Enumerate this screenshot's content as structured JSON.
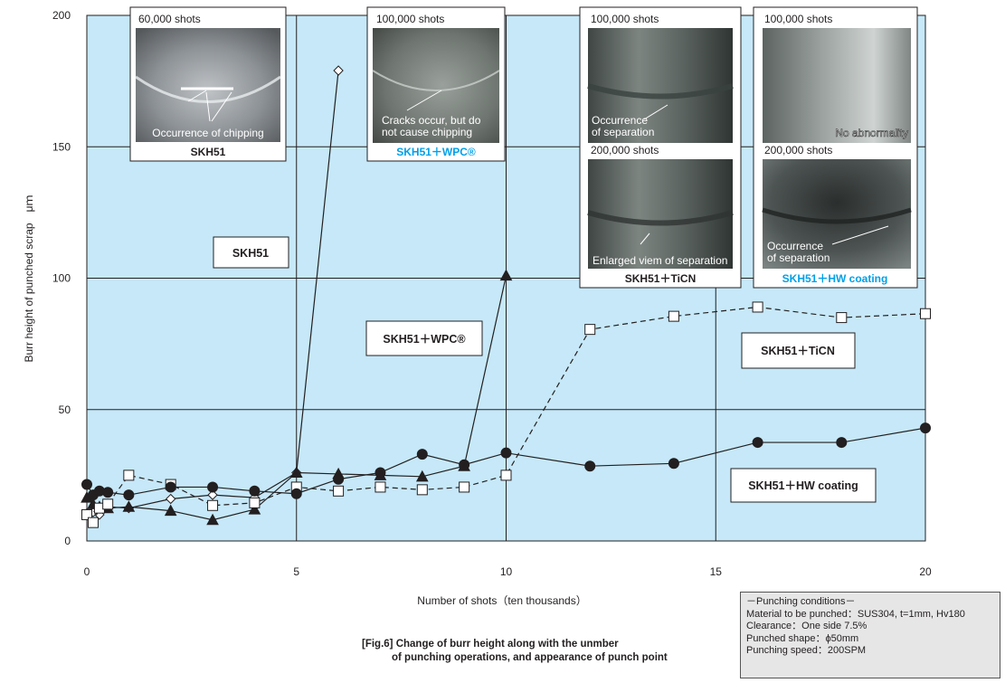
{
  "chart_data": {
    "type": "line",
    "title": "",
    "xlabel": "Number of shots（ten thousands）",
    "ylabel": "Burr height of punched scrap　μｍ",
    "xlim": [
      0,
      20
    ],
    "ylim": [
      0,
      200
    ],
    "x_ticks": [
      "0",
      "5",
      "10",
      "15",
      "20"
    ],
    "y_ticks": [
      "0",
      "50",
      "100",
      "150",
      "200"
    ],
    "grid": true,
    "background_color": "#c6e8f8",
    "series": [
      {
        "name": "SKH51",
        "marker": "diamond-open",
        "line": "solid",
        "points": [
          [
            0,
            10.5
          ],
          [
            0.15,
            11
          ],
          [
            0.3,
            10
          ],
          [
            0.5,
            13
          ],
          [
            1,
            12.5
          ],
          [
            2,
            16
          ],
          [
            3,
            17.5
          ],
          [
            4,
            16.5
          ],
          [
            5,
            26
          ],
          [
            6,
            179
          ]
        ]
      },
      {
        "name": "SKH51＋WPC®",
        "marker": "triangle-filled",
        "line": "solid",
        "points": [
          [
            0,
            16.5
          ],
          [
            0.15,
            14
          ],
          [
            0.3,
            13
          ],
          [
            0.5,
            12.5
          ],
          [
            1,
            13
          ],
          [
            2,
            11.5
          ],
          [
            3,
            8
          ],
          [
            4,
            12
          ],
          [
            5,
            26
          ],
          [
            6,
            25.5
          ],
          [
            7,
            25
          ],
          [
            8,
            24.5
          ],
          [
            9,
            28.5
          ],
          [
            10,
            101
          ]
        ]
      },
      {
        "name": "SKH51＋TiCN",
        "marker": "square-open",
        "line": "dashed",
        "points": [
          [
            0,
            10
          ],
          [
            0.15,
            7
          ],
          [
            0.3,
            12.5
          ],
          [
            0.5,
            14
          ],
          [
            1,
            25
          ],
          [
            2,
            21.5
          ],
          [
            3,
            13.5
          ],
          [
            4,
            14.5
          ],
          [
            5,
            20.5
          ],
          [
            6,
            19
          ],
          [
            7,
            20.5
          ],
          [
            8,
            19.5
          ],
          [
            9,
            20.5
          ],
          [
            10,
            25
          ],
          [
            12,
            80.5
          ],
          [
            14,
            85.5
          ],
          [
            16,
            89
          ],
          [
            18,
            85
          ],
          [
            20,
            86.5
          ]
        ]
      },
      {
        "name": "SKH51＋HW coating",
        "marker": "circle-filled",
        "line": "solid",
        "points": [
          [
            0,
            21.5
          ],
          [
            0.15,
            17.5
          ],
          [
            0.3,
            19
          ],
          [
            0.5,
            18.5
          ],
          [
            1,
            17.5
          ],
          [
            2,
            20.5
          ],
          [
            3,
            20.5
          ],
          [
            4,
            19
          ],
          [
            5,
            18
          ],
          [
            6,
            23.5
          ],
          [
            7,
            26
          ],
          [
            8,
            33
          ],
          [
            9,
            29
          ],
          [
            10,
            33.5
          ],
          [
            12,
            28.5
          ],
          [
            14,
            29.5
          ],
          [
            16,
            37.5
          ],
          [
            18,
            37.5
          ],
          [
            20,
            43
          ]
        ]
      }
    ],
    "series_labels": [
      "SKH51",
      "SKH51＋WPC®",
      "SKH51＋TiCN",
      "SKH51＋HW coating"
    ],
    "photo_panels": [
      {
        "caption": "SKH51",
        "caption_color": "#231f20",
        "shots": "60,000 shots",
        "note": "Occurrence of chipping"
      },
      {
        "caption": "SKH51＋WPC®",
        "caption_color": "#00a0e9",
        "shots": "100,000 shots",
        "note": "Cracks occur, but do\nnot cause chipping"
      },
      {
        "caption": "SKH51＋TiCN",
        "caption_color": "#231f20",
        "shots": "100,000 shots",
        "note": "Occurrence\nof separation",
        "shots2": "200,000 shots",
        "note2": "Enlarged viem of separation"
      },
      {
        "caption": "SKH51＋HW coating",
        "caption_color": "#00a0e9",
        "shots": "100,000 shots",
        "note": "No abnormality",
        "shots2": "200,000 shots",
        "note2": "Occurrence\nof separation"
      }
    ]
  },
  "figure_caption": {
    "line1": "[Fig.6] Change of burr height along with the unmber",
    "line2": "of punching operations, and appearance of punch point"
  },
  "conditions": {
    "title": "－Punching conditions－",
    "lines": [
      "Material to be punched：SUS304, t=1mm, Hv180",
      "Clearance：One side 7.5%",
      "Punched shape：ϕ50mm",
      "Punching speed：200SPM"
    ]
  }
}
